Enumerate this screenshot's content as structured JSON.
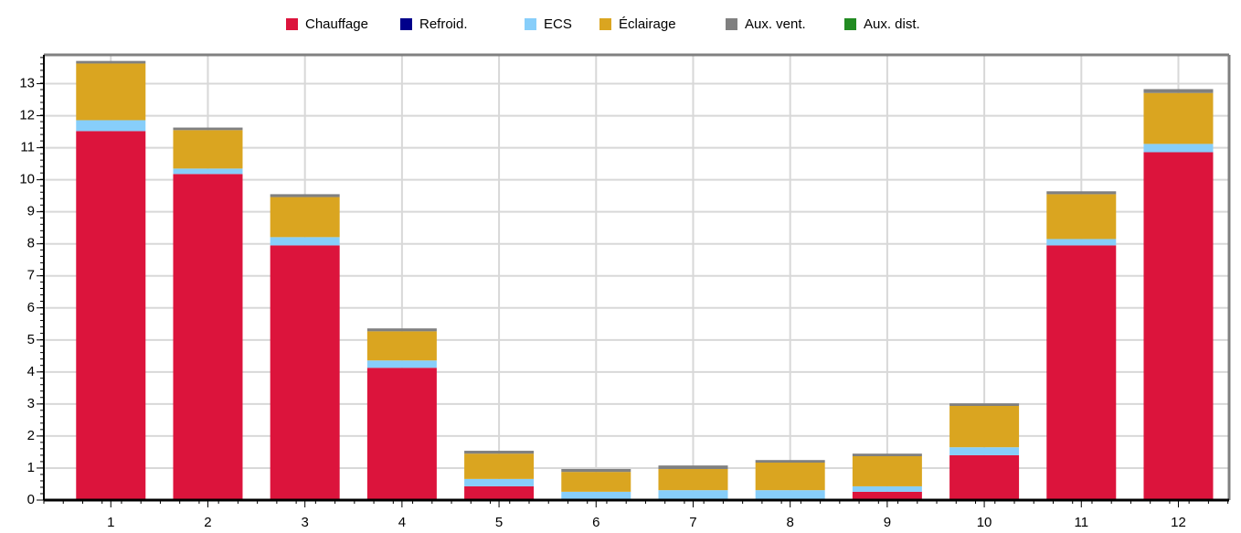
{
  "chart_data": {
    "type": "stacked_bar",
    "categories": [
      "1",
      "2",
      "3",
      "4",
      "5",
      "6",
      "7",
      "8",
      "9",
      "10",
      "11",
      "12"
    ],
    "series": [
      {
        "name": "Chauffage",
        "color": "#dc143c",
        "values": [
          11.52,
          10.18,
          7.95,
          4.13,
          0.43,
          0,
          0,
          0,
          0.26,
          1.4,
          7.95,
          10.86
        ]
      },
      {
        "name": "Refroid.",
        "color": "#00008b",
        "values": [
          0,
          0,
          0,
          0,
          0,
          0,
          0,
          0,
          0,
          0,
          0,
          0
        ]
      },
      {
        "name": "ECS",
        "color": "#87cefa",
        "values": [
          0.34,
          0.17,
          0.26,
          0.23,
          0.23,
          0.26,
          0.31,
          0.31,
          0.17,
          0.25,
          0.2,
          0.26
        ]
      },
      {
        "name": "Éclairage",
        "color": "#daa520",
        "values": [
          1.77,
          1.2,
          1.25,
          0.91,
          0.79,
          0.62,
          0.66,
          0.86,
          0.94,
          1.29,
          1.4,
          1.59
        ]
      },
      {
        "name": "Aux. vent.",
        "color": "#808080",
        "values": [
          0.08,
          0.08,
          0.09,
          0.09,
          0.09,
          0.09,
          0.11,
          0.08,
          0.08,
          0.08,
          0.09,
          0.12
        ]
      },
      {
        "name": "Aux. dist.",
        "color": "#228b22",
        "values": [
          0,
          0,
          0,
          0,
          0,
          0,
          0,
          0,
          0,
          0,
          0,
          0
        ]
      }
    ],
    "ylim": [
      0,
      13.9
    ],
    "yticks": [
      0,
      1,
      2,
      3,
      4,
      5,
      6,
      7,
      8,
      9,
      10,
      11,
      12,
      13
    ],
    "grid": true
  }
}
